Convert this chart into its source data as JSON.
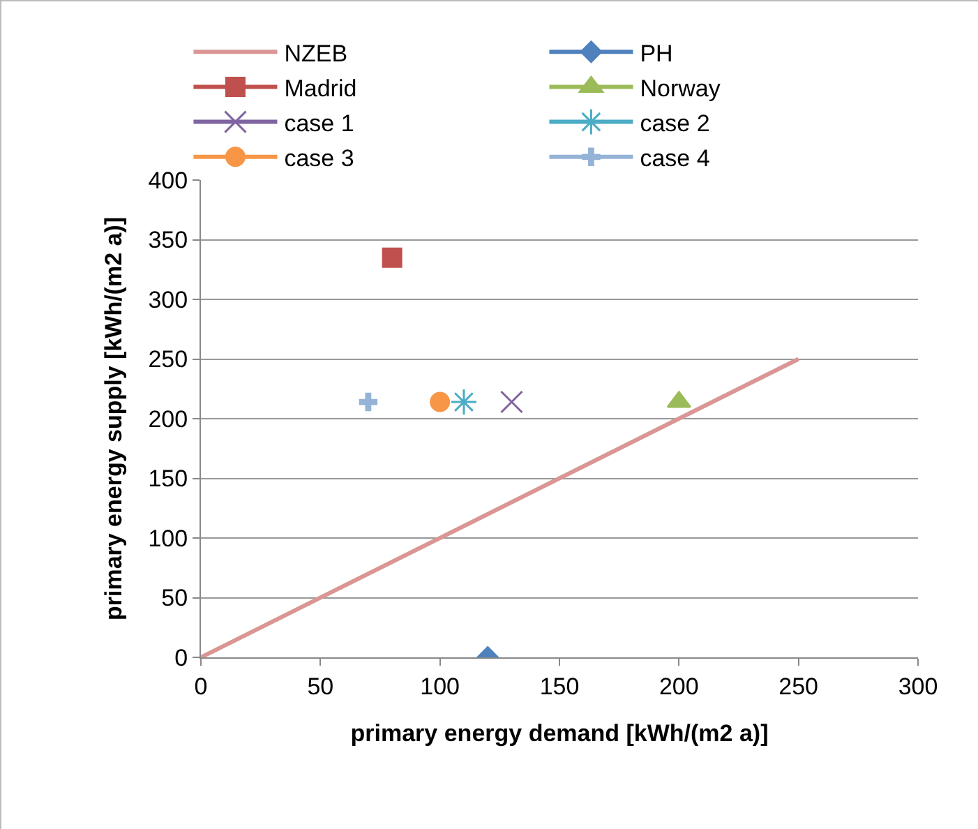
{
  "chart_data": {
    "type": "scatter",
    "xlabel": "primary energy demand [kWh/(m2 a)]",
    "ylabel": "primary energy supply [kWh/(m2 a)]",
    "xlim": [
      0,
      300
    ],
    "xticks": [
      0,
      50,
      100,
      150,
      200,
      250,
      300
    ],
    "ylim": [
      0,
      400
    ],
    "yticks": [
      0,
      50,
      100,
      150,
      200,
      250,
      300,
      350,
      400
    ],
    "grid": "y",
    "legend": "top",
    "series": [
      {
        "name": "NZEB",
        "type": "line",
        "color": "#d99694",
        "marker": "none",
        "x": [
          0,
          250
        ],
        "values": [
          0,
          250
        ]
      },
      {
        "name": "PH",
        "color": "#4f81bd",
        "marker": "diamond",
        "x": [
          120
        ],
        "values": [
          0
        ]
      },
      {
        "name": "Madrid",
        "color": "#c0504d",
        "marker": "square",
        "x": [
          80
        ],
        "values": [
          335
        ]
      },
      {
        "name": "Norway",
        "color": "#9bbb59",
        "marker": "triangle",
        "x": [
          200
        ],
        "values": [
          214
        ]
      },
      {
        "name": "case 1",
        "color": "#8064a2",
        "marker": "x",
        "x": [
          130
        ],
        "values": [
          214
        ]
      },
      {
        "name": "case 2",
        "color": "#4bacc6",
        "marker": "cross",
        "x": [
          110
        ],
        "values": [
          214
        ]
      },
      {
        "name": "case 3",
        "color": "#f79646",
        "marker": "circle",
        "x": [
          100
        ],
        "values": [
          214
        ]
      },
      {
        "name": "case 4",
        "color": "#95b3d7",
        "marker": "plus",
        "x": [
          70
        ],
        "values": [
          214
        ]
      }
    ]
  }
}
